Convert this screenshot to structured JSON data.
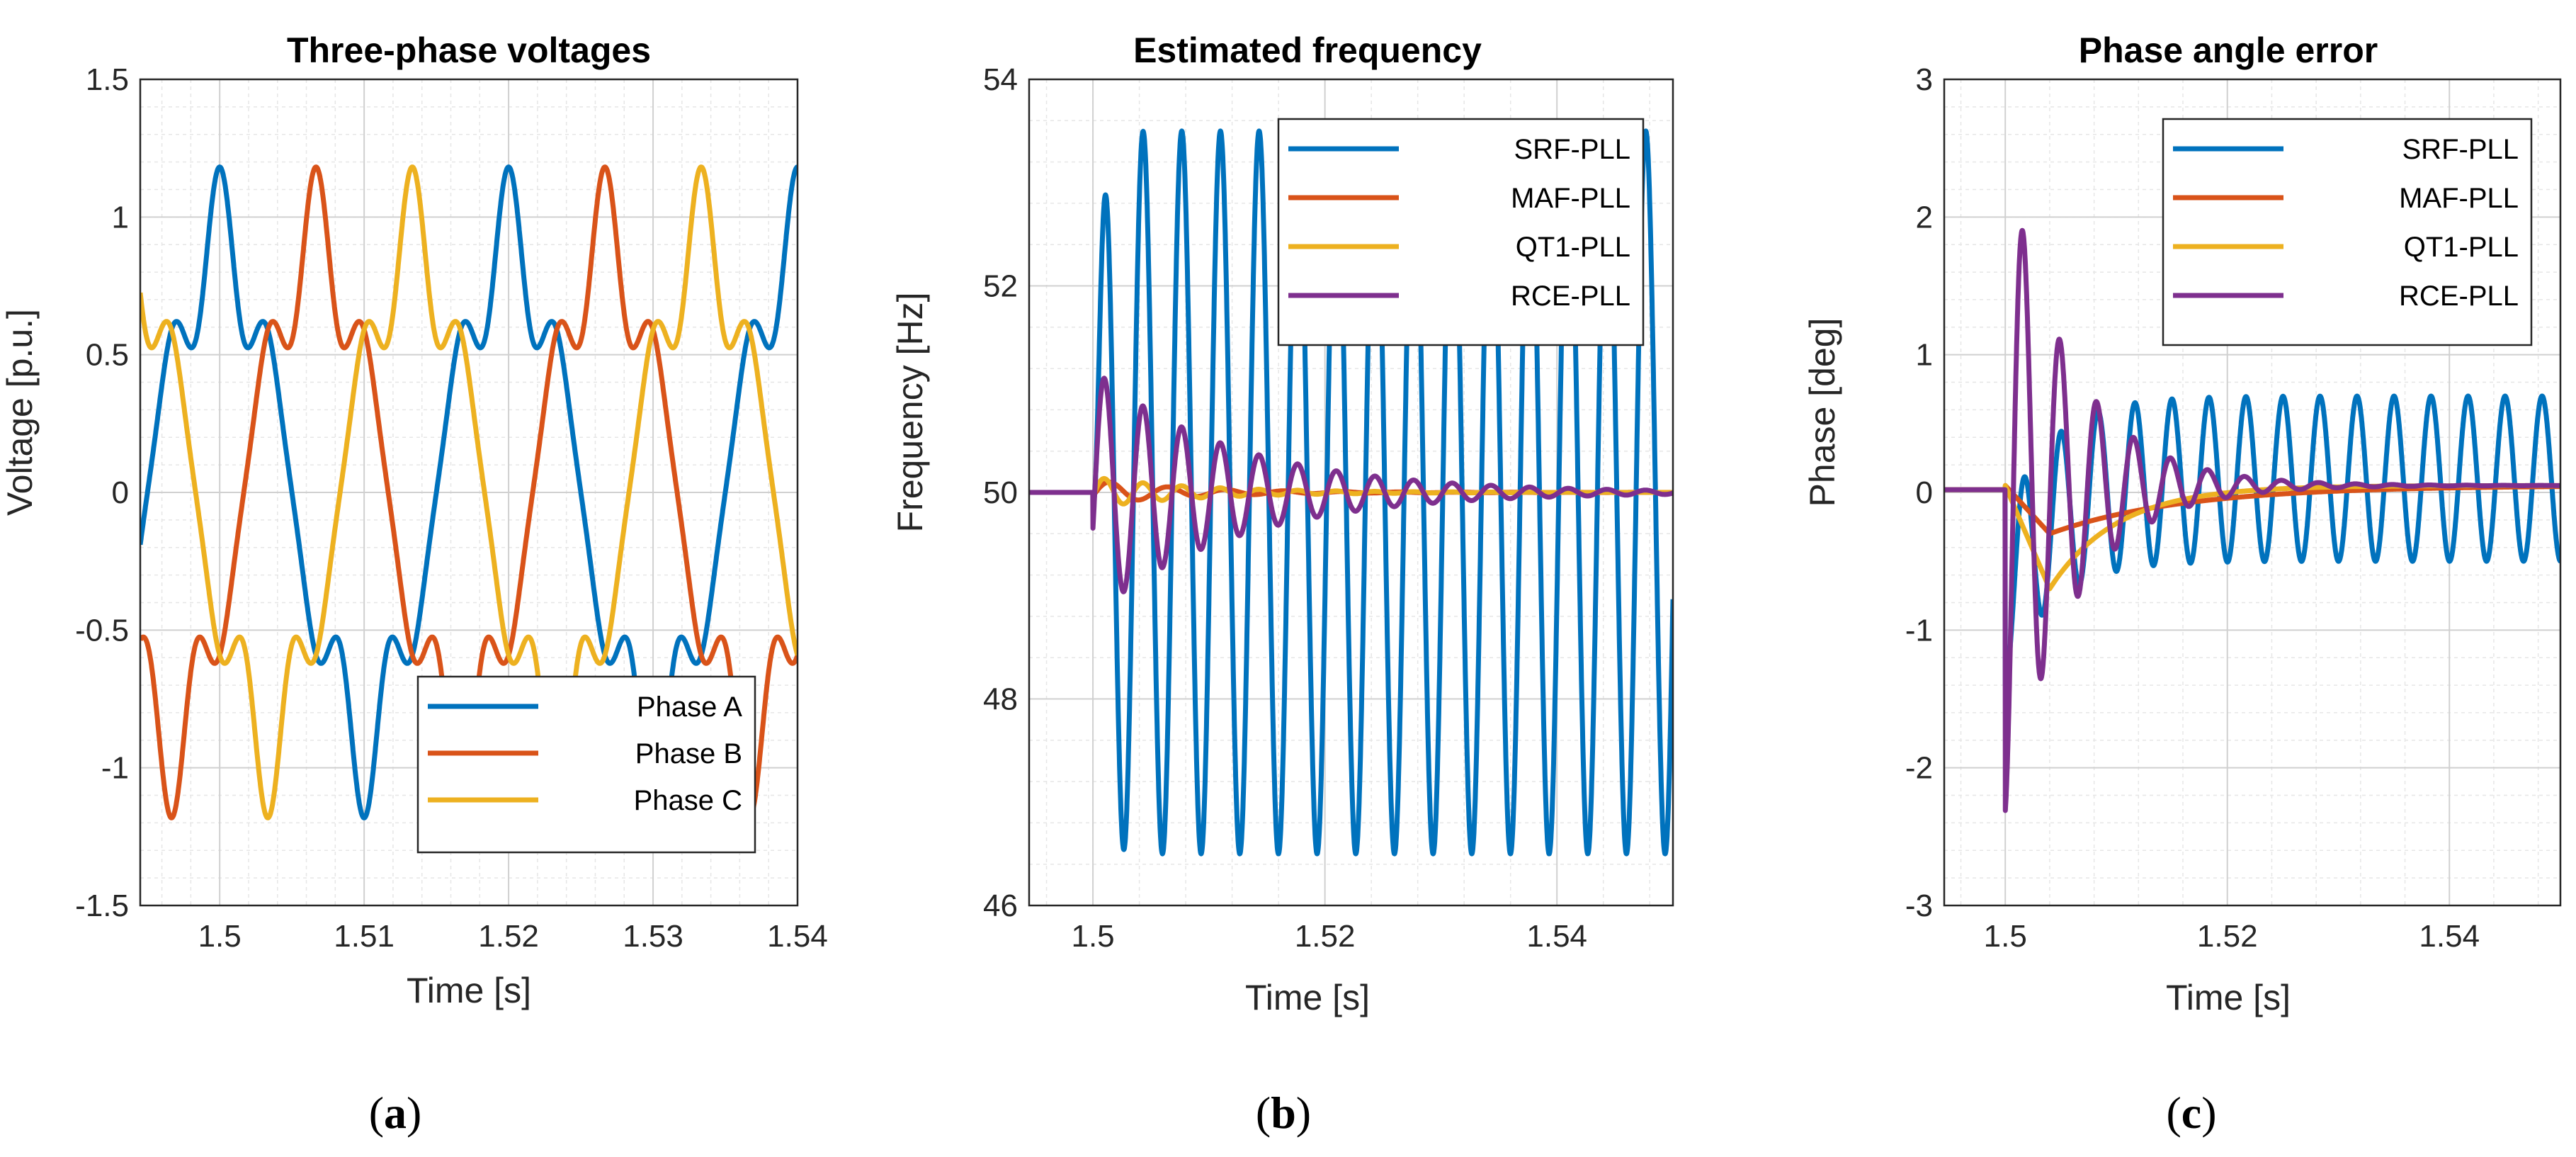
{
  "captions": [
    {
      "open": "(",
      "letter": "a",
      "close": ")"
    },
    {
      "open": "(",
      "letter": "b",
      "close": ")"
    },
    {
      "open": "(",
      "letter": "c",
      "close": ")"
    }
  ],
  "colors": {
    "blue": "#0072bd",
    "orange": "#d95319",
    "yellow": "#edb120",
    "purple": "#7e2f8e"
  },
  "chart_data": [
    {
      "type": "line",
      "title": "Three-phase voltages",
      "xlabel": "Time [s]",
      "ylabel": "Voltage [p.u.]",
      "xlim": [
        1.4945,
        1.54
      ],
      "ylim": [
        -1.5,
        1.5
      ],
      "xticks": [
        1.5,
        1.51,
        1.52,
        1.53,
        1.54
      ],
      "xtick_labels": [
        "1.5",
        "1.51",
        "1.52",
        "1.53",
        "1.54"
      ],
      "yticks": [
        -1.5,
        -1,
        -0.5,
        0,
        0.5,
        1,
        1.5
      ],
      "ytick_labels": [
        "-1.5",
        "-1",
        "-0.5",
        "0",
        "0.5",
        "1",
        "1.5"
      ],
      "grid": true,
      "legend_position": "bottom-right",
      "signal": {
        "kind": "sine",
        "frequency_hz": 50,
        "fifth_harmonic": 0.2,
        "seventh_harmonic": 0.1
      },
      "series": [
        {
          "name": "Phase A",
          "color": "#0072bd",
          "phase_deg": 0
        },
        {
          "name": "Phase B",
          "color": "#d95319",
          "phase_deg": -120
        },
        {
          "name": "Phase C",
          "color": "#edb120",
          "phase_deg": 120
        }
      ]
    },
    {
      "type": "line",
      "title": "Estimated frequency",
      "xlabel": "Time [s]",
      "ylabel": "Frequency [Hz]",
      "xlim": [
        1.4945,
        1.55
      ],
      "ylim": [
        46,
        54
      ],
      "xticks": [
        1.5,
        1.52,
        1.54
      ],
      "xtick_labels": [
        "1.5",
        "1.52",
        "1.54"
      ],
      "yticks": [
        46,
        48,
        50,
        52,
        54
      ],
      "ytick_labels": [
        "46",
        "48",
        "50",
        "52",
        "54"
      ],
      "grid": true,
      "legend_position": "top-right",
      "step_time_s": 1.5,
      "series": [
        {
          "name": "SRF-PLL",
          "color": "#0072bd",
          "baseline": 50,
          "oscillation_amplitude": 3.5,
          "oscillation_hz": 300,
          "damping_tau_s": 0
        },
        {
          "name": "MAF-PLL",
          "color": "#d95319",
          "baseline": 50,
          "oscillation_amplitude": 0.12,
          "oscillation_hz": 200,
          "damping_tau_s": 0.008
        },
        {
          "name": "QT1-PLL",
          "color": "#edb120",
          "baseline": 50,
          "oscillation_amplitude": 0.15,
          "oscillation_hz": 300,
          "damping_tau_s": 0.009
        },
        {
          "name": "RCE-PLL",
          "color": "#7e2f8e",
          "baseline": 50,
          "oscillation_amplitude": 1.2,
          "oscillation_hz": 300,
          "damping_tau_s": 0.012
        }
      ]
    },
    {
      "type": "line",
      "title": "Phase angle error",
      "xlabel": "Time [s]",
      "ylabel": "Phase [deg]",
      "xlim": [
        1.4945,
        1.55
      ],
      "ylim": [
        -3,
        3
      ],
      "xticks": [
        1.5,
        1.52,
        1.54
      ],
      "xtick_labels": [
        "1.5",
        "1.52",
        "1.54"
      ],
      "yticks": [
        -3,
        -2,
        -1,
        0,
        1,
        2,
        3
      ],
      "ytick_labels": [
        "-3",
        "-2",
        "-1",
        "0",
        "1",
        "2",
        "3"
      ],
      "grid": true,
      "legend_position": "top-right",
      "step_time_s": 1.5,
      "series": [
        {
          "name": "SRF-PLL",
          "color": "#0072bd",
          "baseline": 0.1,
          "oscillation_amplitude": 0.6,
          "oscillation_hz": 300,
          "initial_dip": -0.9
        },
        {
          "name": "MAF-PLL",
          "color": "#d95319",
          "baseline": 0.05,
          "initial_dip": -0.35,
          "recovery_tau_s": 0.012
        },
        {
          "name": "QT1-PLL",
          "color": "#edb120",
          "baseline": 0.05,
          "initial_dip": -0.75,
          "recovery_tau_s": 0.006
        },
        {
          "name": "RCE-PLL",
          "color": "#7e2f8e",
          "baseline": 0.05,
          "oscillation_amplitude": 2.4,
          "oscillation_hz": 300,
          "damping_tau_s": 0.006
        }
      ]
    }
  ]
}
